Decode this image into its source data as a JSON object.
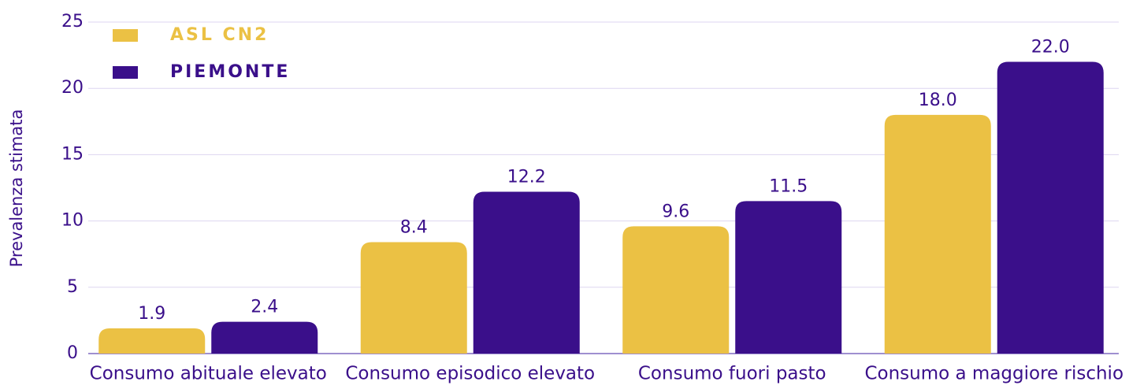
{
  "chart_data": {
    "type": "bar",
    "categories": [
      "Consumo abituale elevato",
      "Consumo episodico elevato",
      "Consumo fuori pasto",
      "Consumo a maggiore rischio"
    ],
    "series": [
      {
        "name": "ASL CN2",
        "color": "#ebc144",
        "values": [
          1.9,
          8.4,
          9.6,
          18.0
        ],
        "value_labels": [
          "1.9",
          "8.4",
          "9.6",
          "18.0"
        ]
      },
      {
        "name": "PIEMONTE",
        "color": "#3a0f8a",
        "values": [
          2.4,
          12.2,
          11.5,
          22.0
        ],
        "value_labels": [
          "2.4",
          "12.2",
          "11.5",
          "22.0"
        ]
      }
    ],
    "ylabel": "Prevalenza stimata",
    "ylim": [
      0,
      25
    ],
    "yticks": [
      0,
      5,
      10,
      15,
      20,
      25
    ],
    "grid": true,
    "legend": "upper left"
  }
}
